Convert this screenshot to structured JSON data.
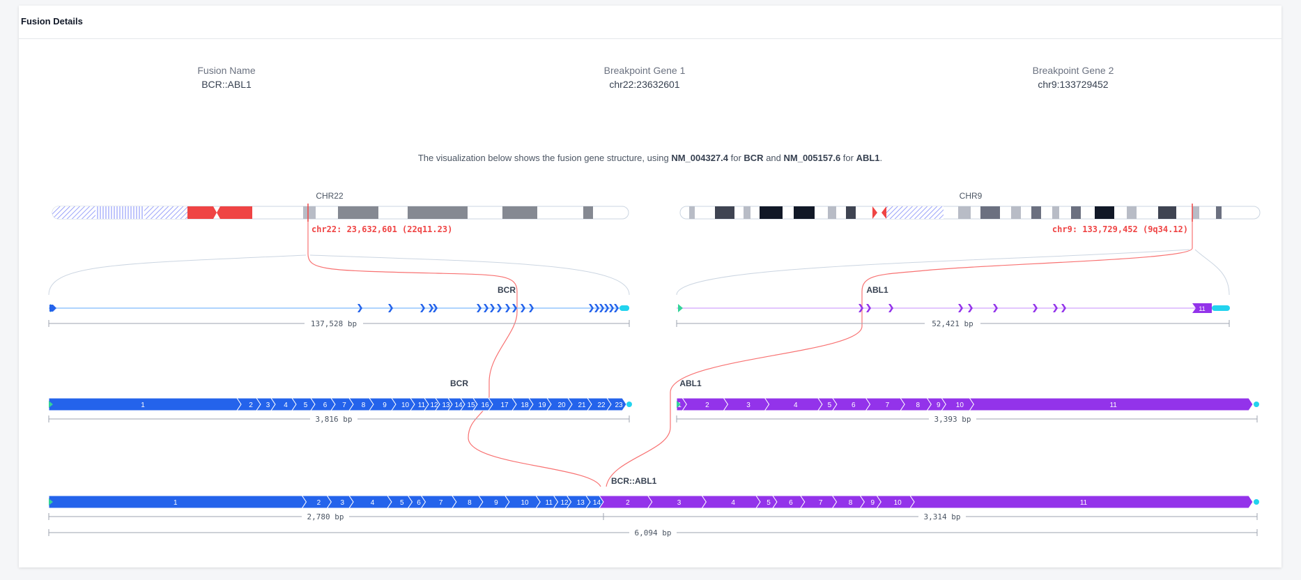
{
  "header": {
    "title": "Fusion Details"
  },
  "summary": {
    "fusion_name_label": "Fusion Name",
    "fusion_name": "BCR::ABL1",
    "gene1_label": "Breakpoint Gene 1",
    "gene1_locus": "chr22:23632601",
    "gene2_label": "Breakpoint Gene 2",
    "gene2_locus": "chr9:133729452"
  },
  "caption": {
    "prefix": "The visualization below shows the fusion gene structure, using ",
    "transcript1": "NM_004327.4",
    "mid1": " for ",
    "gene1": "BCR",
    "mid2": " and ",
    "transcript2": "NM_005157.6",
    "mid3": " for ",
    "gene2": "ABL1",
    "suffix": "."
  },
  "colors": {
    "bcr": "#2463eb",
    "abl1": "#9333ea",
    "utr": "#22d3ee",
    "start": "#34d399",
    "breakpoint": "#ef4444",
    "centromere": "#ef4444",
    "connector": "#cbd5e1"
  },
  "chromosomes": {
    "chr22": {
      "label": "CHR22",
      "breakpoint_label": "chr22: 23,632,601 (22q11.23)"
    },
    "chr9": {
      "label": "CHR9",
      "breakpoint_label": "chr9: 133,729,452 (9q34.12)"
    }
  },
  "genomic": {
    "bcr": {
      "label": "BCR",
      "length_label": "137,528 bp"
    },
    "abl1": {
      "label": "ABL1",
      "length_label": "52,421 bp"
    }
  },
  "transcripts": {
    "bcr": {
      "label": "BCR",
      "length_label": "3,816 bp",
      "exons": [
        "1",
        "2",
        "3",
        "4",
        "5",
        "6",
        "7",
        "8",
        "9",
        "10",
        "11",
        "12",
        "13",
        "14",
        "15",
        "16",
        "17",
        "18",
        "19",
        "20",
        "21",
        "22",
        "23"
      ]
    },
    "abl1": {
      "label": "ABL1",
      "length_label": "3,393 bp",
      "exons": [
        "1",
        "2",
        "3",
        "4",
        "5",
        "6",
        "7",
        "8",
        "9",
        "10",
        "11"
      ]
    }
  },
  "fusion": {
    "label": "BCR::ABL1",
    "bcr_part_label": "2,780 bp",
    "abl1_part_label": "3,314 bp",
    "total_label": "6,094 bp",
    "exons_bcr": [
      "1",
      "2",
      "3",
      "4",
      "5",
      "6",
      "7",
      "8",
      "9",
      "10",
      "11",
      "12",
      "13",
      "14"
    ],
    "exons_abl1": [
      "2",
      "3",
      "4",
      "5",
      "6",
      "7",
      "8",
      "9",
      "10",
      "11"
    ]
  }
}
